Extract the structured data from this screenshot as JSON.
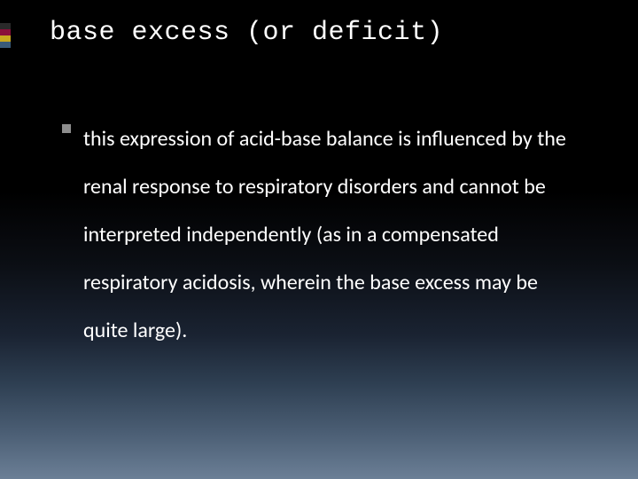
{
  "slide": {
    "title": "base excess (or deficit)",
    "bullet_text": "this expression of acid-base balance is influenced by the renal response to respiratory disorders and cannot be interpreted independently (as in a compensated respiratory acidosis, wherein the base excess may be quite large).",
    "accent_colors": [
      "#2a2a2a",
      "#8a0e3a",
      "#c9a81f",
      "#3a5b7a"
    ],
    "title_font": "monospace",
    "body_font": "sans-serif",
    "title_fontsize": 30,
    "body_fontsize": 24,
    "title_color": "#ffffff",
    "body_color": "#ffffff",
    "bullet_color": "#8d8d8d",
    "background_gradient": [
      "#000000",
      "#6b7f96"
    ]
  }
}
